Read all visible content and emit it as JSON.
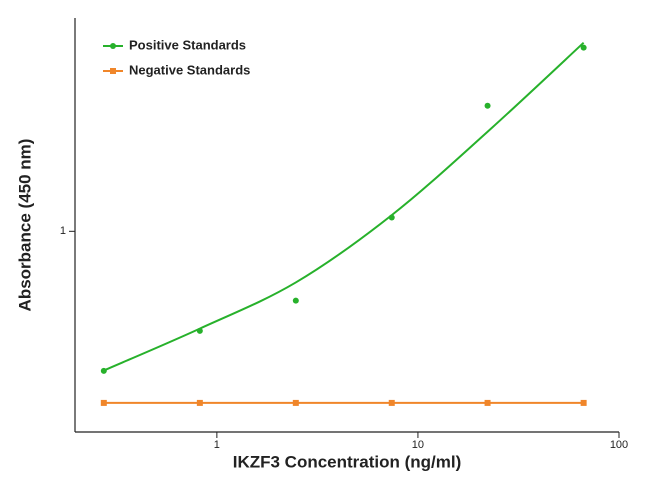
{
  "chart_data": {
    "type": "scatter",
    "x_label": "IKZF3 Concentration (ng/ml)",
    "y_label": "Absorbance (450 nm)",
    "xlog": true,
    "ylog": true,
    "xlim": [
      0.197,
      100
    ],
    "ylim": [
      0.22,
      5
    ],
    "xticks": [
      1,
      10,
      100
    ],
    "yticks": [
      1
    ],
    "legend": "top-left",
    "series": [
      {
        "name": "Positive Standards",
        "color": "#27b12b",
        "marker": "circle",
        "line": false,
        "x": [
          0.274,
          0.823,
          2.47,
          7.41,
          22.2,
          66.7
        ],
        "values": [
          0.349,
          0.472,
          0.593,
          1.11,
          2.58,
          4.0
        ],
        "fit": [
          0.35,
          0.48,
          0.68,
          1.13,
          2.12,
          4.15
        ]
      },
      {
        "name": "Negative Standards",
        "color": "#f0862a",
        "marker": "square",
        "line": true,
        "x": [
          0.274,
          0.823,
          2.47,
          7.41,
          22.2,
          66.7
        ],
        "values": [
          0.274,
          0.274,
          0.274,
          0.274,
          0.274,
          0.274
        ]
      }
    ]
  }
}
